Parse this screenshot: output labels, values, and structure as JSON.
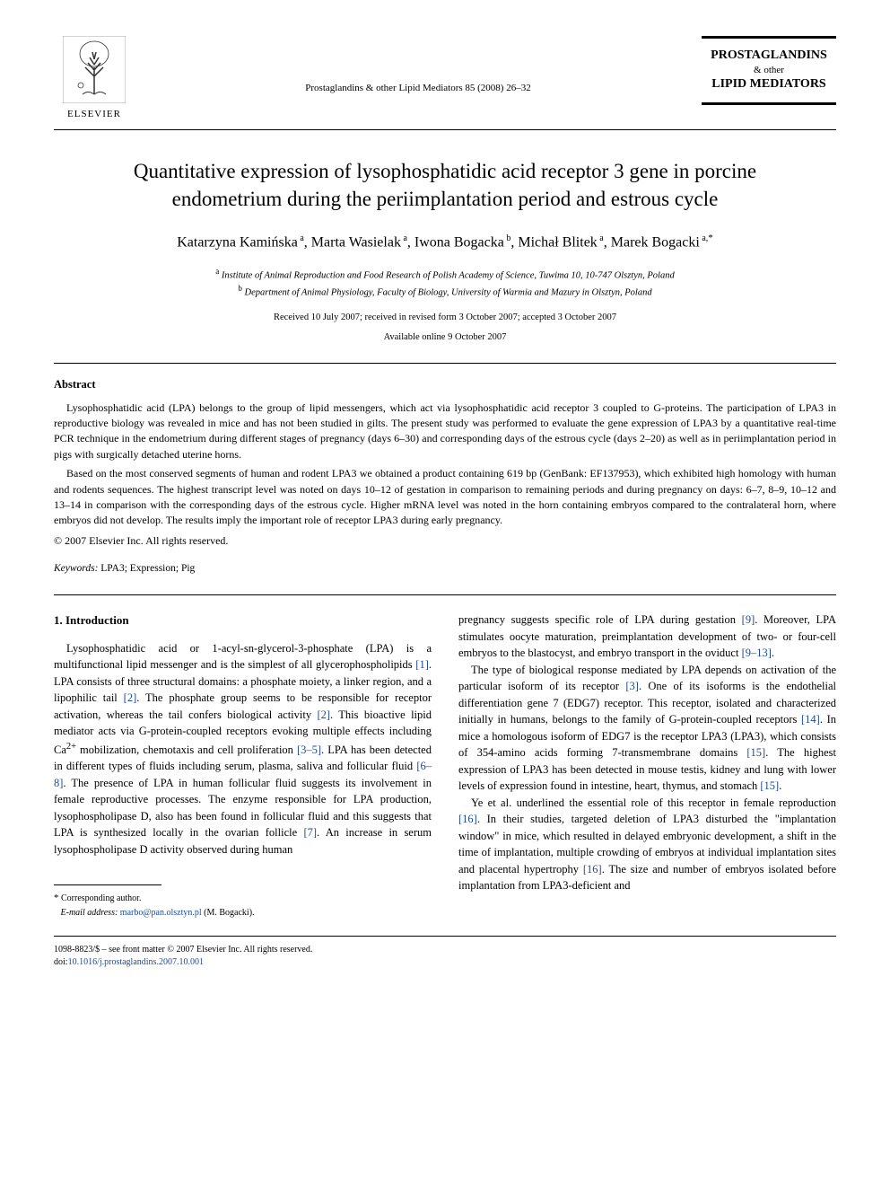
{
  "publisher": {
    "name": "ELSEVIER"
  },
  "journal": {
    "reference": "Prostaglandins & other Lipid Mediators 85 (2008) 26–32",
    "box_line1": "PROSTAGLANDINS",
    "box_line2": "& other",
    "box_line3": "LIPID MEDIATORS"
  },
  "title": "Quantitative expression of lysophosphatidic acid receptor 3 gene in porcine endometrium during the periimplantation period and estrous cycle",
  "authors": [
    {
      "name": "Katarzyna Kamińska",
      "aff": "a"
    },
    {
      "name": "Marta Wasielak",
      "aff": "a"
    },
    {
      "name": "Iwona Bogacka",
      "aff": "b"
    },
    {
      "name": "Michał Blitek",
      "aff": "a"
    },
    {
      "name": "Marek Bogacki",
      "aff": "a,*"
    }
  ],
  "affiliations": {
    "a": "Institute of Animal Reproduction and Food Research of Polish Academy of Science, Tuwima 10, 10-747 Olsztyn, Poland",
    "b": "Department of Animal Physiology, Faculty of Biology, University of Warmia and Mazury in Olsztyn, Poland"
  },
  "dates": {
    "received": "Received 10 July 2007; received in revised form 3 October 2007; accepted 3 October 2007",
    "available": "Available online 9 October 2007"
  },
  "abstract": {
    "heading": "Abstract",
    "para1": "Lysophosphatidic acid (LPA) belongs to the group of lipid messengers, which act via lysophosphatidic acid receptor 3 coupled to G-proteins. The participation of LPA3 in reproductive biology was revealed in mice and has not been studied in gilts. The present study was performed to evaluate the gene expression of LPA3 by a quantitative real-time PCR technique in the endometrium during different stages of pregnancy (days 6–30) and corresponding days of the estrous cycle (days 2–20) as well as in periimplantation period in pigs with surgically detached uterine horns.",
    "para2": "Based on the most conserved segments of human and rodent LPA3 we obtained a product containing 619 bp (GenBank: EF137953), which exhibited high homology with human and rodents sequences. The highest transcript level was noted on days 10–12 of gestation in comparison to remaining periods and during pregnancy on days: 6–7, 8–9, 10–12 and 13–14 in comparison with the corresponding days of the estrous cycle. Higher mRNA level was noted in the horn containing embryos compared to the contralateral horn, where embryos did not develop. The results imply the important role of receptor LPA3 during early pregnancy.",
    "copyright": "© 2007 Elsevier Inc. All rights reserved."
  },
  "keywords": {
    "label": "Keywords:",
    "text": "LPA3; Expression; Pig"
  },
  "section1": {
    "heading": "1.  Introduction",
    "col1_para1_parts": [
      "Lysophosphatidic acid or 1-acyl-sn-glycerol-3-phosphate (LPA) is a multifunctional lipid messenger and is the simplest of all glycerophospholipids ",
      "[1]",
      ". LPA consists of three structural domains: a phosphate moiety, a linker region, and a lipophilic tail ",
      "[2]",
      ". The phosphate group seems to be responsible for receptor activation, whereas the tail confers biological activity ",
      "[2]",
      ". This bioactive lipid mediator acts via G-protein-coupled receptors evoking multiple effects including Ca",
      "2+",
      " mobilization, chemotaxis and cell proliferation ",
      "[3–5]",
      ". LPA has been detected in different types of fluids including serum, plasma, saliva and follicular fluid ",
      "[6–8]",
      ". The presence of LPA in human follicular fluid suggests its involvement in female reproductive processes. The enzyme responsible for LPA production, lysophospholipase D, also has been found in follicular fluid and this suggests that LPA is synthesized locally in the ovarian follicle ",
      "[7]",
      ". An increase in serum lysophospholipase D activity observed during human"
    ],
    "col2_para1_parts": [
      "pregnancy suggests specific role of LPA during gestation ",
      "[9]",
      ". Moreover, LPA stimulates oocyte maturation, preimplantation development of two- or four-cell embryos to the blastocyst, and embryo transport in the oviduct ",
      "[9–13]",
      "."
    ],
    "col2_para2_parts": [
      "The type of biological response mediated by LPA depends on activation of the particular isoform of its receptor ",
      "[3]",
      ". One of its isoforms is the endothelial differentiation gene 7 (EDG7) receptor. This receptor, isolated and characterized initially in humans, belongs to the family of G-protein-coupled receptors ",
      "[14]",
      ". In mice a homologous isoform of EDG7 is the receptor LPA3 (LPA3), which consists of 354-amino acids forming 7-transmembrane domains ",
      "[15]",
      ". The highest expression of LPA3 has been detected in mouse testis, kidney and lung with lower levels of expression found in intestine, heart, thymus, and stomach ",
      "[15]",
      "."
    ],
    "col2_para3_parts": [
      "Ye et al. underlined the essential role of this receptor in female reproduction ",
      "[16]",
      ". In their studies, targeted deletion of LPA3 disturbed the \"implantation window\" in mice, which resulted in delayed embryonic development, a shift in the time of implantation, multiple crowding of embryos at individual implantation sites and placental hypertrophy ",
      "[16]",
      ". The size and number of embryos isolated before implantation from LPA3-deficient and"
    ]
  },
  "footnote": {
    "corresponding": "Corresponding author.",
    "email_label": "E-mail address:",
    "email": "marbo@pan.olsztyn.pl",
    "email_person": "(M. Bogacki)."
  },
  "footer": {
    "issn": "1098-8823/$ – see front matter © 2007 Elsevier Inc. All rights reserved.",
    "doi_label": "doi:",
    "doi": "10.1016/j.prostaglandins.2007.10.001"
  },
  "colors": {
    "link": "#1a4b9b",
    "text": "#000000",
    "background": "#ffffff"
  }
}
